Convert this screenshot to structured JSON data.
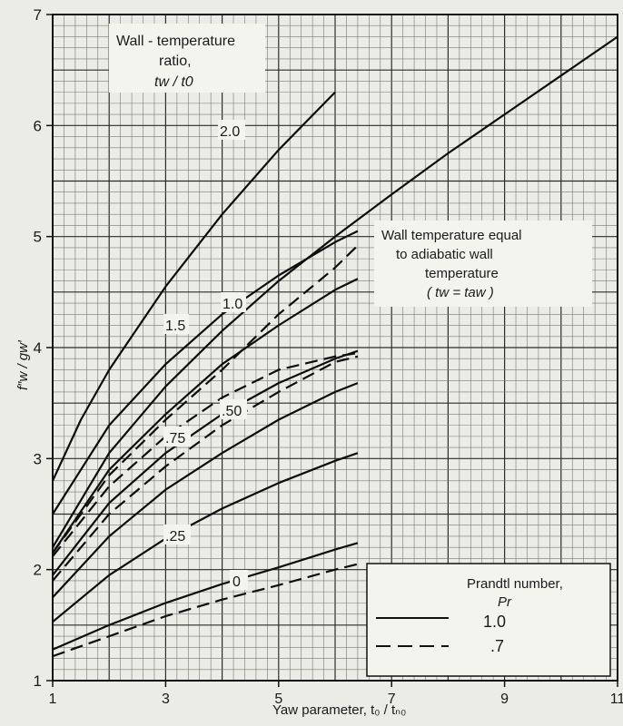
{
  "chart_data": {
    "type": "line",
    "xlabel": "Yaw parameter, t₀ / tₙ₀",
    "ylabel": "f″w / gw′",
    "xlim": [
      1,
      11
    ],
    "ylim": [
      1,
      7
    ],
    "x_ticks": [
      1,
      3,
      5,
      7,
      9,
      11
    ],
    "x_tick_labels": [
      "1",
      "3",
      "5",
      "7",
      "9",
      "11"
    ],
    "y_ticks": [
      1,
      2,
      3,
      4,
      5,
      6,
      7
    ],
    "y_tick_labels": [
      "1",
      "2",
      "3",
      "4",
      "5",
      "6",
      "7"
    ],
    "grid": true,
    "annotations": {
      "ratio_box_line1": "Wall - temperature",
      "ratio_box_line2": "ratio,",
      "ratio_box_line3": "tw / t0",
      "adiabatic_line1": "Wall temperature equal",
      "adiabatic_line2": "to adiabatic wall",
      "adiabatic_line3": "temperature",
      "adiabatic_line4": "( tw = taw )"
    },
    "legend": {
      "title_line1": "Prandtl number,",
      "title_line2": "Pr",
      "placement": "bottom-right",
      "entries": [
        {
          "label": "1.0",
          "style": "solid"
        },
        {
          "label": ".7",
          "style": "dashed"
        }
      ]
    },
    "series": [
      {
        "label": "2.0",
        "style": "solid",
        "x": [
          1,
          1.5,
          2,
          3,
          4,
          5,
          6
        ],
        "y": [
          2.8,
          3.35,
          3.8,
          4.55,
          5.2,
          5.78,
          6.3
        ]
      },
      {
        "label": "1.5",
        "style": "solid",
        "x": [
          1,
          2,
          3,
          4,
          5,
          6,
          6.4
        ],
        "y": [
          2.5,
          3.3,
          3.85,
          4.3,
          4.65,
          4.95,
          5.05
        ]
      },
      {
        "label": "1.0",
        "style": "solid",
        "x": [
          1,
          2,
          3,
          4,
          5,
          6,
          6.4
        ],
        "y": [
          2.15,
          2.9,
          3.4,
          3.85,
          4.2,
          4.52,
          4.62
        ]
      },
      {
        "label": ".75",
        "style": "solid",
        "x": [
          1,
          2,
          3,
          4,
          5,
          6,
          6.4
        ],
        "y": [
          1.95,
          2.6,
          3.05,
          3.4,
          3.68,
          3.9,
          3.97
        ]
      },
      {
        "label": ".50",
        "style": "solid",
        "x": [
          1,
          2,
          3,
          4,
          5,
          6,
          6.4
        ],
        "y": [
          1.75,
          2.3,
          2.72,
          3.05,
          3.35,
          3.6,
          3.68
        ]
      },
      {
        "label": ".25",
        "style": "solid",
        "x": [
          1,
          2,
          3,
          4,
          5,
          6,
          6.4
        ],
        "y": [
          1.53,
          1.95,
          2.28,
          2.55,
          2.78,
          2.98,
          3.05
        ]
      },
      {
        "label": "0",
        "style": "solid",
        "x": [
          1,
          2,
          3,
          4,
          5,
          6,
          6.4
        ],
        "y": [
          1.28,
          1.5,
          1.7,
          1.87,
          2.02,
          2.18,
          2.24
        ]
      },
      {
        "label": "",
        "style": "dashed",
        "x": [
          1,
          2,
          3,
          4,
          5,
          6,
          6.4
        ],
        "y": [
          1.22,
          1.4,
          1.58,
          1.73,
          1.86,
          2.0,
          2.05
        ]
      },
      {
        "label": "",
        "style": "dashed",
        "x": [
          1,
          2,
          3,
          4,
          5,
          6,
          6.4
        ],
        "y": [
          2.12,
          2.75,
          3.2,
          3.55,
          3.8,
          3.92,
          3.95
        ]
      },
      {
        "label": "",
        "style": "dashed",
        "x": [
          1,
          2,
          3,
          4,
          5,
          6,
          6.4
        ],
        "y": [
          1.9,
          2.5,
          2.93,
          3.3,
          3.6,
          3.87,
          3.92
        ]
      },
      {
        "label": "adiabatic-1.0",
        "style": "solid",
        "x": [
          1,
          2,
          3,
          4,
          5,
          6,
          7,
          8,
          9,
          10,
          11
        ],
        "y": [
          2.2,
          3.05,
          3.65,
          4.15,
          4.6,
          5.0,
          5.38,
          5.75,
          6.1,
          6.45,
          6.8
        ]
      },
      {
        "label": "adiabatic-0.7",
        "style": "dashed",
        "x": [
          1,
          2,
          3,
          4,
          5,
          6,
          6.4
        ],
        "y": [
          2.15,
          2.85,
          3.35,
          3.8,
          4.3,
          4.72,
          4.92
        ]
      }
    ]
  }
}
